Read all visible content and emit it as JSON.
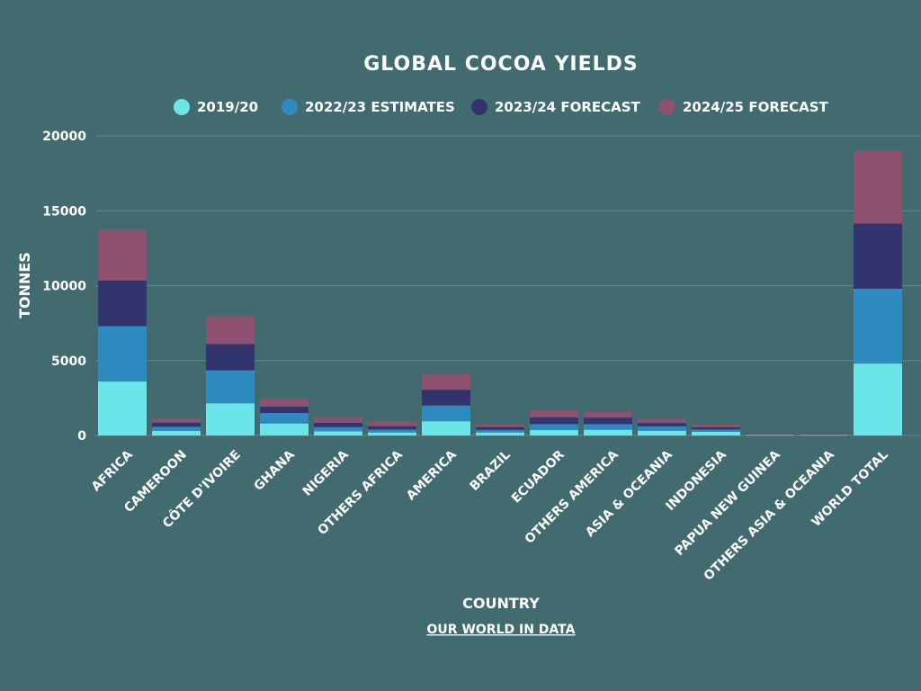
{
  "chart_data": {
    "type": "bar",
    "stacked": true,
    "title": "Global Cocoa Yields",
    "xlabel": "Country",
    "ylabel": "Tonnes",
    "source": "Our World In Data",
    "ylim": [
      0,
      20000
    ],
    "yticks": [
      0,
      5000,
      10000,
      15000,
      20000
    ],
    "grid": true,
    "legend_position": "top",
    "categories": [
      "Africa",
      "Cameroon",
      "Côte d'Ivoire",
      "Ghana",
      "Nigeria",
      "Others Africa",
      "America",
      "Brazil",
      "Ecuador",
      "Others America",
      "Asia & Oceania",
      "Indonesia",
      "Papua New Guinea",
      "Others Asia & Oceania",
      "World Total"
    ],
    "series": [
      {
        "name": "2019/20",
        "color": "#6ae6e8",
        "values": [
          3600,
          300,
          2150,
          800,
          280,
          200,
          950,
          200,
          360,
          380,
          310,
          240,
          40,
          30,
          4800
        ]
      },
      {
        "name": "2022/23 Estimates",
        "color": "#2e8bbf",
        "values": [
          3700,
          280,
          2200,
          700,
          280,
          200,
          1050,
          180,
          400,
          380,
          300,
          160,
          30,
          30,
          5000
        ]
      },
      {
        "name": "2023/24 Forecast",
        "color": "#32346e",
        "values": [
          3050,
          280,
          1750,
          430,
          280,
          220,
          1050,
          180,
          460,
          430,
          220,
          150,
          20,
          20,
          4350
        ]
      },
      {
        "name": "2024/25 Forecast",
        "color": "#8e5170",
        "values": [
          3400,
          280,
          1850,
          500,
          350,
          310,
          1050,
          200,
          450,
          380,
          270,
          160,
          20,
          20,
          4850
        ]
      }
    ]
  }
}
